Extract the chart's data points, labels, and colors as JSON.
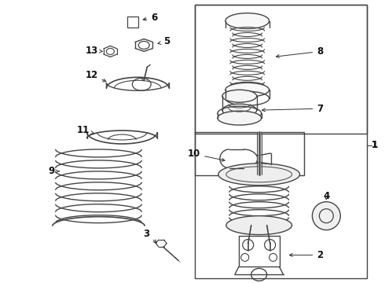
{
  "bg_color": "#ffffff",
  "line_color": "#444444",
  "fig_width": 4.9,
  "fig_height": 3.6,
  "dpi": 100
}
